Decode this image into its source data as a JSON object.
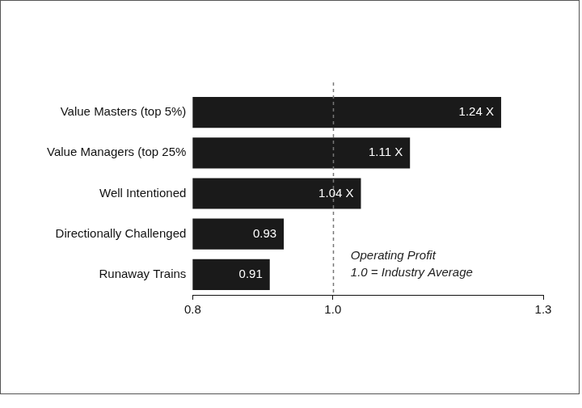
{
  "chart_data": {
    "type": "bar",
    "orientation": "horizontal",
    "categories": [
      "Value Masters (top 5%)",
      "Value Managers (top 25%",
      "Well Intentioned",
      "Directionally Challenged",
      "Runaway Trains"
    ],
    "values": [
      1.24,
      1.11,
      1.04,
      0.93,
      0.91
    ],
    "value_labels": [
      "1.24 X",
      "1.11 X",
      "1.04 X",
      "0.93",
      "0.91"
    ],
    "data_labels": true,
    "color": "#1a1a1a",
    "xlim": [
      0.8,
      1.3
    ],
    "xticks": [
      0.8,
      {
        "value": 1,
        "label": "1.0"
      },
      1.3
    ],
    "reference_line": 1,
    "annotation": [
      "Operating Profit",
      "1.0 = Industry Average"
    ],
    "grid": false
  }
}
